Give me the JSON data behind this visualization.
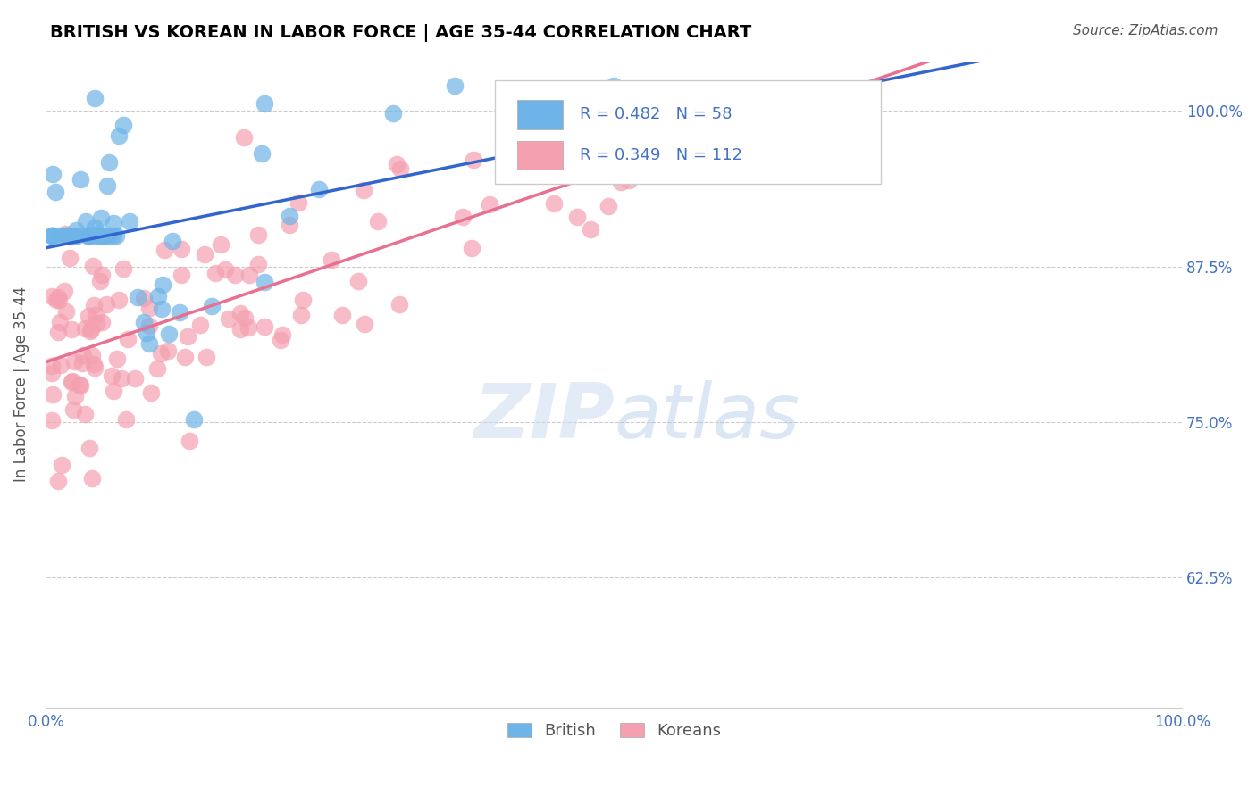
{
  "title": "BRITISH VS KOREAN IN LABOR FORCE | AGE 35-44 CORRELATION CHART",
  "source": "Source: ZipAtlas.com",
  "ylabel": "In Labor Force | Age 35-44",
  "legend_british": "British",
  "legend_koreans": "Koreans",
  "R_british": 0.482,
  "N_british": 58,
  "R_korean": 0.349,
  "N_korean": 112,
  "xlim": [
    0.0,
    1.0
  ],
  "ylim": [
    0.52,
    1.04
  ],
  "yticks": [
    0.625,
    0.75,
    0.875,
    1.0
  ],
  "ytick_labels": [
    "62.5%",
    "75.0%",
    "87.5%",
    "100.0%"
  ],
  "color_british": "#6EB4E8",
  "color_korean": "#F4A0B0",
  "line_color_british": "#3366CC",
  "line_color_korean": "#E87090",
  "background_color": "#FFFFFF",
  "title_color": "#000000",
  "axis_label_color": "#4472C4",
  "watermark_color": "#C8D8F0"
}
